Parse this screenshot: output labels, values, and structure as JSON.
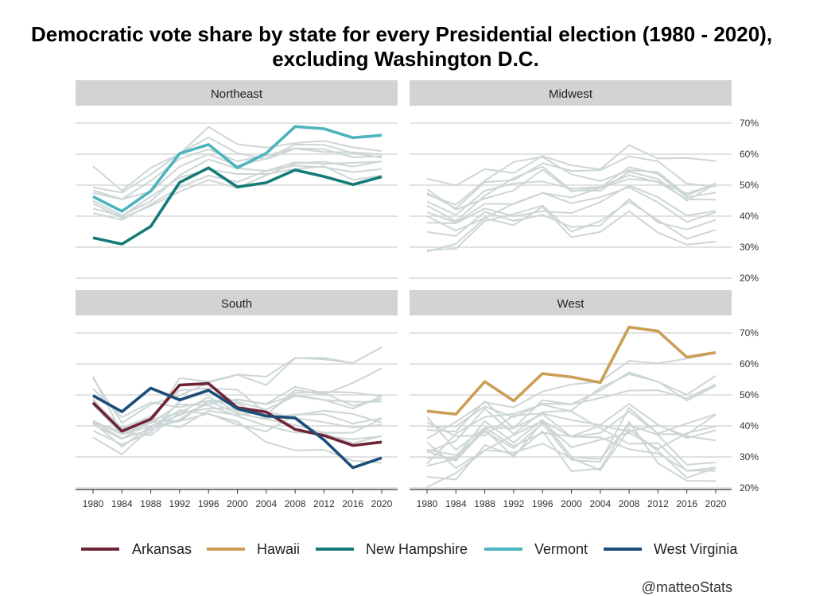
{
  "title_line1": "Democratic vote share by state for every Presidential election (1980 - 2020),",
  "title_line2": "excluding Washington D.C.",
  "caption": "@matteoStats",
  "chart_data": {
    "type": "line",
    "x": [
      1980,
      1984,
      1988,
      1992,
      1996,
      2000,
      2004,
      2008,
      2012,
      2016,
      2020
    ],
    "y_unit": "%",
    "ylim": [
      20,
      72
    ],
    "y_ticks": [
      20,
      30,
      40,
      50,
      60,
      70
    ],
    "y_tick_labels": [
      "20%",
      "30%",
      "40%",
      "50%",
      "60%",
      "70%"
    ],
    "x_tick_labels": [
      "1980",
      "1984",
      "1988",
      "1992",
      "1996",
      "2000",
      "2004",
      "2008",
      "2012",
      "2016",
      "2020"
    ],
    "grid": true,
    "legend_position": "bottom",
    "background_color": "#cdd6d6",
    "legend": [
      {
        "name": "Arkansas",
        "color": "#6e2434"
      },
      {
        "name": "Hawaii",
        "color": "#cc9e55"
      },
      {
        "name": "New Hampshire",
        "color": "#147a78"
      },
      {
        "name": "Vermont",
        "color": "#4bb4bc"
      },
      {
        "name": "West Virginia",
        "color": "#1b4d78"
      }
    ],
    "panels": [
      {
        "label": "Northeast",
        "highlight": [
          {
            "name": "Vermont",
            "values": [
              46.3,
              41.6,
              48.1,
              60.2,
              63.1,
              55.6,
              60.3,
              68.9,
              68.2,
              65.3,
              66.1
            ]
          },
          {
            "name": "New Hampshire",
            "values": [
              33.0,
              31.0,
              36.7,
              50.9,
              55.6,
              49.4,
              50.8,
              54.9,
              52.8,
              50.2,
              52.7
            ]
          }
        ],
        "background": [
          [
            56.1,
            48.2,
            55.6,
            60.1,
            68.8,
            63.2,
            62.1,
            63.6,
            64.3,
            62.2,
            61.0
          ],
          [
            49.3,
            47.6,
            53.4,
            60.3,
            65.4,
            60.3,
            58.4,
            61.8,
            60.7,
            60.6,
            59.9
          ],
          [
            48.3,
            45.5,
            51.4,
            58.5,
            61.6,
            57.7,
            59.6,
            61.9,
            61.6,
            59.0,
            59.3
          ],
          [
            47.5,
            45.5,
            47.9,
            56.0,
            60.0,
            56.3,
            58.6,
            63.1,
            63.0,
            60.3,
            58.9
          ],
          [
            45.0,
            40.2,
            44.8,
            53.2,
            58.3,
            55.4,
            54.6,
            57.4,
            56.9,
            57.2,
            57.6
          ],
          [
            44.1,
            39.4,
            43.3,
            47.9,
            51.7,
            49.1,
            53.2,
            57.0,
            57.6,
            56.0,
            57.7
          ],
          [
            42.5,
            40.0,
            46.3,
            52.4,
            55.1,
            53.6,
            53.6,
            55.2,
            56.1,
            51.7,
            53.1
          ],
          [
            41.0,
            38.8,
            43.8,
            49.3,
            53.1,
            51.0,
            54.6,
            56.3,
            55.8,
            54.2,
            55.2
          ]
        ]
      },
      {
        "label": "Midwest",
        "highlight": [],
        "background": [
          [
            52.1,
            49.9,
            55.2,
            53.9,
            59.4,
            56.4,
            55.1,
            62.9,
            58.6,
            58.8,
            57.8
          ],
          [
            47.5,
            42.5,
            51.0,
            51.6,
            57.1,
            54.6,
            54.8,
            59.3,
            57.7,
            50.5,
            49.5
          ],
          [
            48.7,
            42.1,
            45.7,
            48.3,
            55.0,
            48.0,
            49.2,
            55.8,
            53.6,
            46.1,
            47.6
          ],
          [
            46.9,
            43.7,
            51.4,
            57.5,
            59.1,
            53.5,
            51.3,
            54.8,
            54.2,
            46.7,
            50.6
          ],
          [
            44.7,
            40.4,
            48.2,
            50.6,
            51.2,
            48.9,
            49.4,
            53.2,
            51.0,
            45.5,
            45.3
          ],
          [
            43.4,
            38.4,
            46.6,
            52.3,
            56.0,
            48.3,
            48.2,
            54.3,
            52.0,
            45.0,
            50.5
          ],
          [
            41.3,
            37.9,
            44.0,
            43.9,
            47.5,
            44.2,
            46.1,
            49.3,
            44.4,
            38.1,
            41.3
          ],
          [
            40.0,
            35.3,
            39.4,
            44.1,
            47.5,
            46.0,
            49.1,
            52.0,
            51.2,
            47.3,
            50.3
          ],
          [
            37.9,
            37.7,
            42.5,
            40.0,
            41.6,
            41.0,
            44.5,
            49.9,
            46.1,
            40.2,
            41.7
          ],
          [
            34.9,
            33.6,
            41.4,
            38.5,
            40.4,
            36.5,
            37.0,
            45.5,
            38.0,
            35.7,
            38.8
          ],
          [
            29.0,
            29.5,
            38.4,
            40.7,
            43.4,
            35.0,
            38.4,
            44.7,
            38.7,
            32.7,
            35.6
          ],
          [
            28.6,
            31.1,
            39.3,
            37.1,
            43.0,
            33.2,
            34.9,
            41.6,
            34.7,
            30.8,
            31.8
          ]
        ]
      },
      {
        "label": "South",
        "highlight": [
          {
            "name": "Arkansas",
            "values": [
              47.5,
              38.3,
              42.2,
              53.2,
              53.7,
              45.9,
              44.5,
              38.9,
              36.9,
              33.7,
              34.8
            ]
          },
          {
            "name": "West Virginia",
            "values": [
              49.8,
              44.6,
              52.2,
              48.4,
              51.5,
              45.6,
              43.2,
              42.6,
              35.5,
              26.5,
              29.7
            ]
          }
        ],
        "background": [
          [
            56.0,
            37.4,
            41.0,
            55.4,
            54.3,
            56.6,
            55.9,
            61.9,
            62.0,
            60.3,
            65.4
          ],
          [
            55.4,
            41.0,
            46.9,
            49.8,
            54.0,
            56.5,
            53.2,
            61.9,
            61.5,
            60.3,
            65.4
          ],
          [
            47.2,
            39.2,
            42.0,
            44.2,
            45.6,
            45.8,
            43.6,
            51.6,
            50.1,
            53.9,
            58.6
          ],
          [
            41.4,
            38.0,
            37.0,
            44.2,
            49.3,
            44.7,
            43.8,
            50.7,
            51.0,
            50.8,
            49.6
          ],
          [
            41.1,
            33.3,
            39.9,
            41.5,
            48.0,
            48.4,
            47.0,
            50.0,
            48.4,
            47.8,
            47.8
          ],
          [
            41.7,
            37.3,
            39.9,
            43.5,
            47.1,
            48.6,
            47.1,
            52.6,
            50.6,
            46.5,
            48.6
          ],
          [
            38.5,
            34.0,
            37.9,
            48.0,
            51.2,
            47.7,
            45.3,
            49.7,
            48.4,
            45.6,
            49.5
          ],
          [
            48.1,
            39.4,
            43.0,
            51.5,
            52.1,
            51.7,
            44.1,
            38.9,
            36.7,
            35.7,
            36.7
          ],
          [
            52.0,
            42.8,
            47.6,
            46.0,
            48.1,
            47.3,
            42.5,
            43.7,
            43.8,
            40.8,
            42.5
          ],
          [
            41.4,
            36.0,
            38.8,
            42.1,
            48.0,
            44.0,
            42.2,
            40.3,
            37.8,
            37.8,
            42.4
          ],
          [
            40.4,
            35.8,
            41.7,
            41.6,
            44.0,
            40.4,
            38.2,
            43.5,
            44.9,
            43.9,
            41.0
          ],
          [
            36.3,
            30.8,
            39.4,
            45.1,
            43.8,
            41.4,
            34.8,
            32.1,
            32.3,
            28.8,
            28.1
          ],
          [
            48.8,
            37.5,
            41.4,
            39.5,
            44.9,
            43.5,
            44.7,
            42.5,
            41.2,
            39.5,
            40.3
          ],
          [
            46.9,
            37.4,
            41.0,
            47.0,
            46.6,
            43.2,
            40.0,
            37.9,
            37.6,
            34.4,
            36.8
          ]
        ]
      },
      {
        "label": "West",
        "highlight": [
          {
            "name": "Hawaii",
            "values": [
              44.8,
              43.8,
              54.3,
              48.1,
              56.9,
              55.8,
              54.0,
              71.9,
              70.6,
              62.2,
              63.7
            ]
          }
        ],
        "background": [
          [
            35.9,
            41.3,
            47.6,
            46.0,
            51.1,
            53.4,
            54.3,
            61.0,
            60.2,
            61.7,
            63.5
          ],
          [
            39.8,
            39.9,
            46.3,
            42.8,
            47.2,
            47.0,
            51.4,
            57.3,
            54.2,
            50.1,
            56.2
          ],
          [
            31.6,
            35.2,
            45.6,
            37.4,
            44.5,
            45.0,
            52.3,
            56.7,
            54.3,
            48.2,
            52.9
          ],
          [
            38.7,
            38.2,
            48.0,
            39.2,
            48.3,
            47.0,
            49.0,
            51.4,
            51.5,
            48.9,
            53.4
          ],
          [
            29.7,
            29.8,
            41.6,
            34.6,
            42.0,
            30.0,
            29.3,
            40.3,
            37.1,
            27.5,
            28.2
          ],
          [
            34.8,
            26.4,
            32.2,
            31.4,
            34.3,
            29.6,
            25.7,
            39.0,
            31.9,
            23.3,
            26.4
          ],
          [
            23.6,
            22.7,
            33.8,
            30.6,
            38.3,
            25.4,
            26.2,
            41.3,
            28.0,
            22.3,
            22.2
          ],
          [
            32.3,
            30.6,
            38.1,
            32.8,
            40.9,
            29.0,
            28.4,
            45.9,
            37.4,
            37.2,
            43.7
          ],
          [
            31.8,
            28.8,
            38.8,
            30.0,
            41.3,
            33.1,
            35.5,
            37.8,
            32.6,
            37.7,
            39.9
          ],
          [
            27.1,
            29.4,
            39.4,
            39.2,
            43.9,
            36.5,
            37.7,
            44.7,
            37.6,
            40.8,
            43.8
          ],
          [
            42.9,
            32.2,
            39.4,
            33.5,
            37.8,
            36.6,
            40.1,
            38.2,
            40.3,
            36.7,
            35.3
          ],
          [
            20.3,
            24.8,
            32.1,
            37.1,
            41.6,
            36.5,
            36.3,
            32.5,
            31.1,
            25.6,
            25.5
          ],
          [
            41.2,
            36.7,
            36.9,
            43.4,
            44.0,
            41.9,
            40.3,
            47.1,
            40.4,
            36.1,
            38.6
          ],
          [
            27.8,
            37.5,
            42.9,
            43.9,
            46.9,
            44.7,
            39.3,
            34.2,
            34.5,
            25.5,
            26.6
          ]
        ]
      }
    ]
  }
}
